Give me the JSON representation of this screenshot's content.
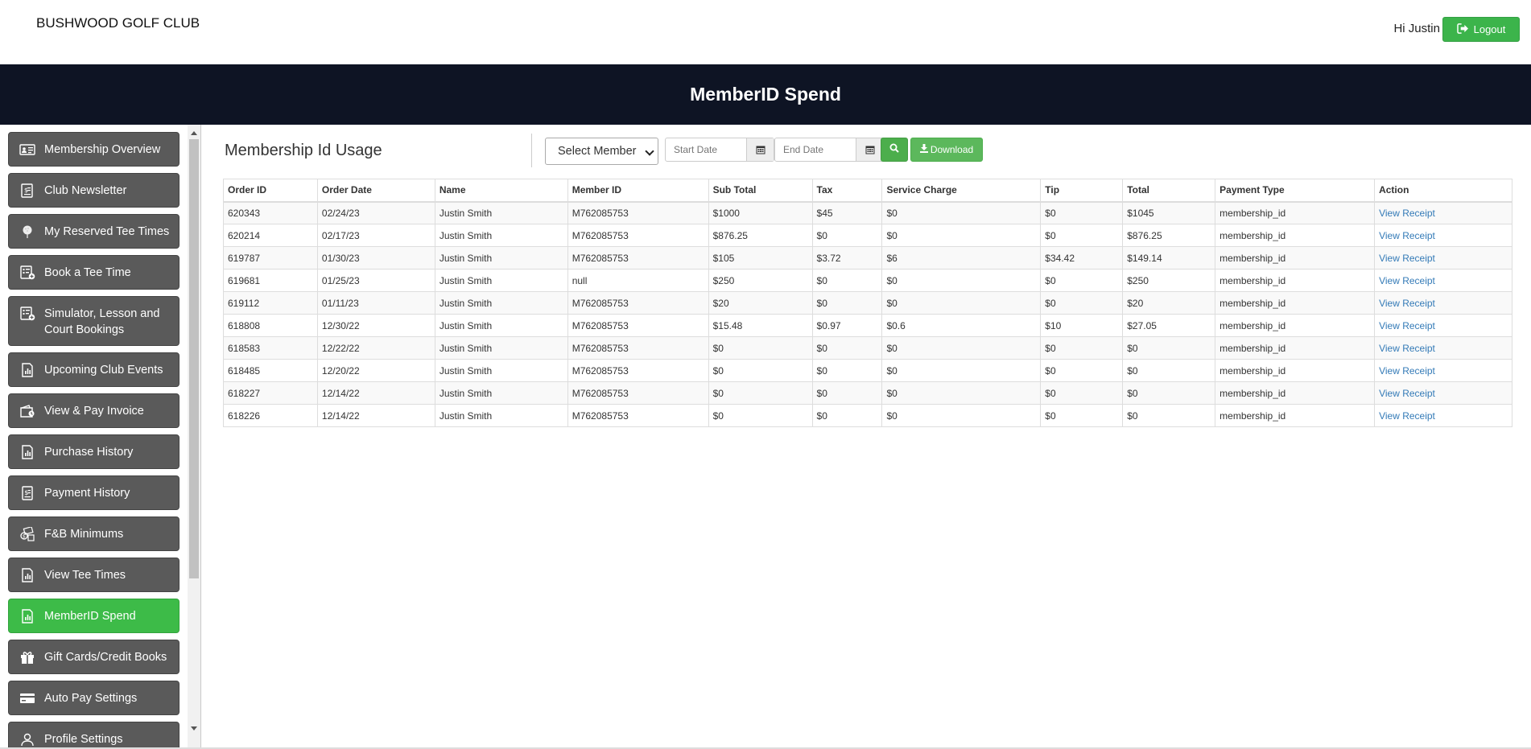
{
  "header": {
    "brand": "BUSHWOOD GOLF CLUB",
    "greeting": "Hi Justin",
    "logout_label": "Logout",
    "accent": "#3cb44b"
  },
  "banner": {
    "title": "MemberID Spend",
    "bg": "#0e1424"
  },
  "sidebar": {
    "items": [
      {
        "label": "Membership Overview",
        "icon": "id-card-icon"
      },
      {
        "label": "Club Newsletter",
        "icon": "newsletter-icon"
      },
      {
        "label": "My Reserved Tee Times",
        "icon": "golf-ball-icon"
      },
      {
        "label": "Book a Tee Time",
        "icon": "calendar-add-icon"
      },
      {
        "label": "Simulator, Lesson and Court Bookings",
        "icon": "calendar-add-icon"
      },
      {
        "label": "Upcoming Club Events",
        "icon": "report-icon"
      },
      {
        "label": "View & Pay Invoice",
        "icon": "wallet-icon"
      },
      {
        "label": "Purchase History",
        "icon": "report-icon"
      },
      {
        "label": "Payment History",
        "icon": "dollar-doc-icon"
      },
      {
        "label": "F&B Minimums",
        "icon": "money-icon"
      },
      {
        "label": "View Tee Times",
        "icon": "report-icon"
      },
      {
        "label": "MemberID Spend",
        "icon": "report-icon",
        "active": true
      },
      {
        "label": "Gift Cards/Credit Books",
        "icon": "gift-icon"
      },
      {
        "label": "Auto Pay Settings",
        "icon": "credit-card-icon"
      },
      {
        "label": "Profile Settings",
        "icon": "profile-icon"
      }
    ]
  },
  "main": {
    "title": "Membership Id Usage",
    "filters": {
      "member_select": "Select Member",
      "start_placeholder": "Start Date",
      "end_placeholder": "End Date",
      "search_icon": "search-icon",
      "download_label": "Download"
    },
    "table": {
      "columns": [
        "Order ID",
        "Order Date",
        "Name",
        "Member ID",
        "Sub Total",
        "Tax",
        "Service Charge",
        "Tip",
        "Total",
        "Payment Type",
        "Action"
      ],
      "rows": [
        [
          "620343",
          "02/24/23",
          "Justin Smith",
          "M762085753",
          "$1000",
          "$45",
          "$0",
          "$0",
          "$1045",
          "membership_id",
          "View Receipt"
        ],
        [
          "620214",
          "02/17/23",
          "Justin Smith",
          "M762085753",
          "$876.25",
          "$0",
          "$0",
          "$0",
          "$876.25",
          "membership_id",
          "View Receipt"
        ],
        [
          "619787",
          "01/30/23",
          "Justin Smith",
          "M762085753",
          "$105",
          "$3.72",
          "$6",
          "$34.42",
          "$149.14",
          "membership_id",
          "View Receipt"
        ],
        [
          "619681",
          "01/25/23",
          "Justin Smith",
          "null",
          "$250",
          "$0",
          "$0",
          "$0",
          "$250",
          "membership_id",
          "View Receipt"
        ],
        [
          "619112",
          "01/11/23",
          "Justin Smith",
          "M762085753",
          "$20",
          "$0",
          "$0",
          "$0",
          "$20",
          "membership_id",
          "View Receipt"
        ],
        [
          "618808",
          "12/30/22",
          "Justin Smith",
          "M762085753",
          "$15.48",
          "$0.97",
          "$0.6",
          "$10",
          "$27.05",
          "membership_id",
          "View Receipt"
        ],
        [
          "618583",
          "12/22/22",
          "Justin Smith",
          "M762085753",
          "$0",
          "$0",
          "$0",
          "$0",
          "$0",
          "membership_id",
          "View Receipt"
        ],
        [
          "618485",
          "12/20/22",
          "Justin Smith",
          "M762085753",
          "$0",
          "$0",
          "$0",
          "$0",
          "$0",
          "membership_id",
          "View Receipt"
        ],
        [
          "618227",
          "12/14/22",
          "Justin Smith",
          "M762085753",
          "$0",
          "$0",
          "$0",
          "$0",
          "$0",
          "membership_id",
          "View Receipt"
        ],
        [
          "618226",
          "12/14/22",
          "Justin Smith",
          "M762085753",
          "$0",
          "$0",
          "$0",
          "$0",
          "$0",
          "membership_id",
          "View Receipt"
        ]
      ]
    }
  }
}
